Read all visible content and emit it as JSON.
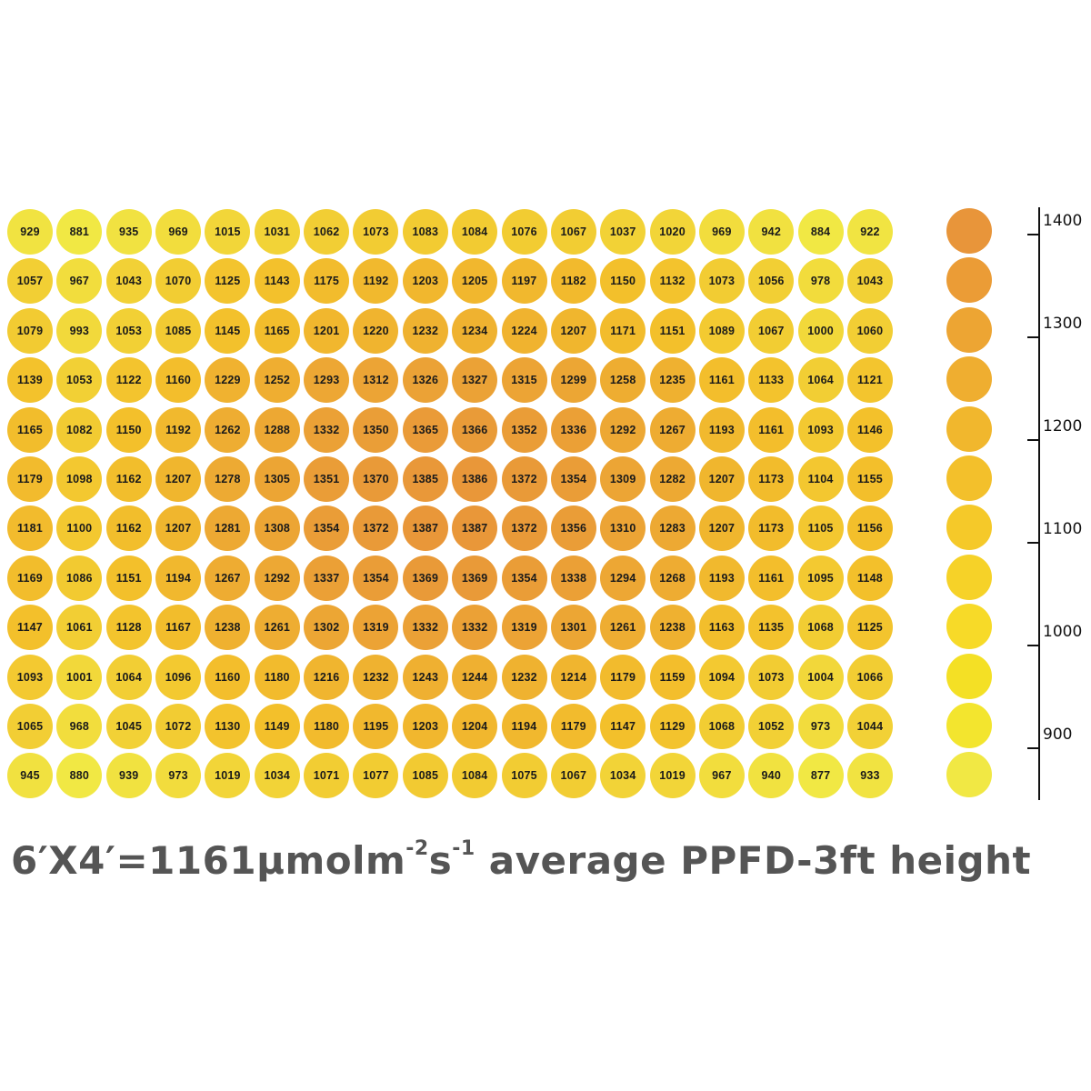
{
  "chart_data": {
    "type": "heatmap",
    "title": "",
    "xlabel": "",
    "ylabel": "",
    "units": "µmol m-2 s-1",
    "grid_rows": 12,
    "grid_cols": 18,
    "values": [
      [
        929,
        881,
        935,
        969,
        1015,
        1031,
        1062,
        1073,
        1083,
        1084,
        1076,
        1067,
        1037,
        1020,
        969,
        942,
        884,
        922
      ],
      [
        1057,
        967,
        1043,
        1070,
        1125,
        1143,
        1175,
        1192,
        1203,
        1205,
        1197,
        1182,
        1150,
        1132,
        1073,
        1056,
        978,
        1043
      ],
      [
        1079,
        993,
        1053,
        1085,
        1145,
        1165,
        1201,
        1220,
        1232,
        1234,
        1224,
        1207,
        1171,
        1151,
        1089,
        1067,
        1000,
        1060
      ],
      [
        1139,
        1053,
        1122,
        1160,
        1229,
        1252,
        1293,
        1312,
        1326,
        1327,
        1315,
        1299,
        1258,
        1235,
        1161,
        1133,
        1064,
        1121
      ],
      [
        1165,
        1082,
        1150,
        1192,
        1262,
        1288,
        1332,
        1350,
        1365,
        1366,
        1352,
        1336,
        1292,
        1267,
        1193,
        1161,
        1093,
        1146
      ],
      [
        1179,
        1098,
        1162,
        1207,
        1278,
        1305,
        1351,
        1370,
        1385,
        1386,
        1372,
        1354,
        1309,
        1282,
        1207,
        1173,
        1104,
        1155
      ],
      [
        1181,
        1100,
        1162,
        1207,
        1281,
        1308,
        1354,
        1372,
        1387,
        1387,
        1372,
        1356,
        1310,
        1283,
        1207,
        1173,
        1105,
        1156
      ],
      [
        1169,
        1086,
        1151,
        1194,
        1267,
        1292,
        1337,
        1354,
        1369,
        1369,
        1354,
        1338,
        1294,
        1268,
        1193,
        1161,
        1095,
        1148
      ],
      [
        1147,
        1061,
        1128,
        1167,
        1238,
        1261,
        1302,
        1319,
        1332,
        1332,
        1319,
        1301,
        1261,
        1238,
        1163,
        1135,
        1068,
        1125
      ],
      [
        1093,
        1001,
        1064,
        1096,
        1160,
        1180,
        1216,
        1232,
        1243,
        1244,
        1232,
        1214,
        1179,
        1159,
        1094,
        1073,
        1004,
        1066
      ],
      [
        1065,
        968,
        1045,
        1072,
        1130,
        1149,
        1180,
        1195,
        1203,
        1204,
        1194,
        1179,
        1147,
        1129,
        1068,
        1052,
        973,
        1044
      ],
      [
        945,
        880,
        939,
        973,
        1019,
        1034,
        1071,
        1077,
        1085,
        1084,
        1075,
        1067,
        1034,
        1019,
        967,
        940,
        877,
        933
      ]
    ],
    "color_scale": {
      "min": 900,
      "max": 1400,
      "tick_labels": [
        "1400",
        "1300",
        "1200",
        "1100",
        "1000",
        "900"
      ],
      "tick_values": [
        1400,
        1300,
        1200,
        1100,
        1000,
        900
      ],
      "swatch_colors": [
        "#e8953a",
        "#eb9c36",
        "#eda533",
        "#efae30",
        "#f1b72d",
        "#f3c02b",
        "#f5c929",
        "#f6d228",
        "#f7da28",
        "#f4e025",
        "#f3e52e",
        "#f1e844"
      ],
      "placement": "right"
    },
    "colors": {
      "low": "#f1e844",
      "mid": "#f3c02b",
      "high": "#e8953a"
    }
  },
  "caption": {
    "main": "6′X4′=1161μmolm",
    "sup1": "-2",
    "mid": "s",
    "sup2": "-1",
    "tail": " average PPFD-3ft height"
  }
}
